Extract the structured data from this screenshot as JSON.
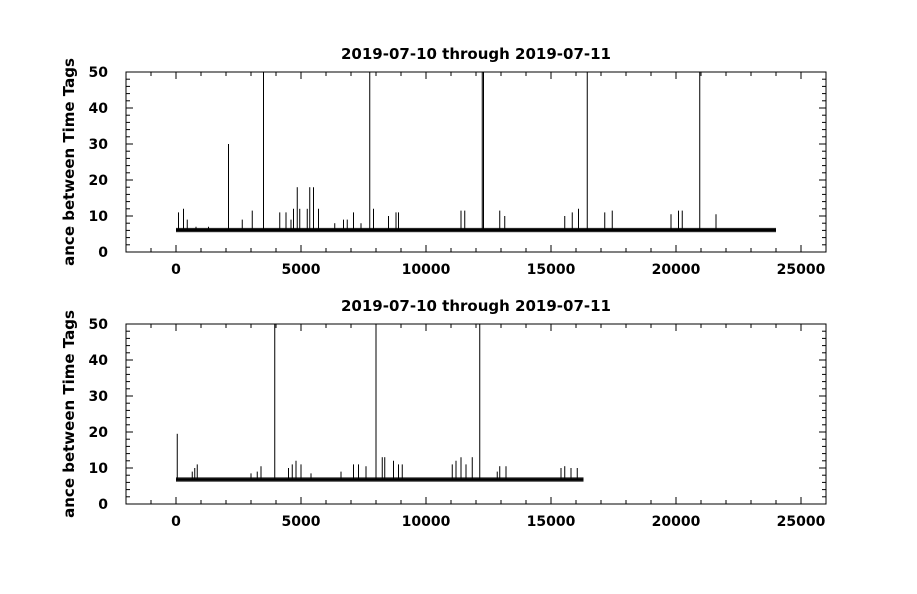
{
  "chart_data": [
    {
      "type": "line",
      "title": "2019-07-10 through 2019-07-11",
      "ylabel": "ance between Time Tags",
      "xlabel": "",
      "xlim": [
        -2000,
        26000
      ],
      "ylim": [
        0,
        50
      ],
      "x_ticks": [
        0,
        5000,
        10000,
        15000,
        20000,
        25000
      ],
      "y_ticks": [
        0,
        10,
        20,
        30,
        40,
        50
      ],
      "baseline": {
        "x_start": 0,
        "x_end": 24000,
        "y": 6.1
      },
      "series": [
        {
          "spikes": [
            [
              100,
              11
            ],
            [
              300,
              12
            ],
            [
              450,
              9
            ],
            [
              800,
              7
            ],
            [
              1300,
              7
            ],
            [
              2100,
              30
            ],
            [
              2650,
              9
            ],
            [
              3050,
              11.5
            ],
            [
              3500,
              50
            ],
            [
              4150,
              11
            ],
            [
              4400,
              11
            ],
            [
              4600,
              9
            ],
            [
              4700,
              12
            ],
            [
              4850,
              18
            ],
            [
              4950,
              12
            ],
            [
              5250,
              12
            ],
            [
              5350,
              18
            ],
            [
              5500,
              18
            ],
            [
              5700,
              12
            ],
            [
              6350,
              8
            ],
            [
              6700,
              9
            ],
            [
              6850,
              9
            ],
            [
              7100,
              11
            ],
            [
              7400,
              8
            ],
            [
              7750,
              50
            ],
            [
              7900,
              12
            ],
            [
              8500,
              10
            ],
            [
              8800,
              11
            ],
            [
              8900,
              11
            ],
            [
              11400,
              11.5
            ],
            [
              11550,
              11.5
            ],
            [
              12250,
              50
            ],
            [
              12300,
              50
            ],
            [
              12950,
              11.5
            ],
            [
              13150,
              10
            ],
            [
              15550,
              10
            ],
            [
              15850,
              11
            ],
            [
              16100,
              12
            ],
            [
              16450,
              50
            ],
            [
              17150,
              11
            ],
            [
              17450,
              11.5
            ],
            [
              19800,
              10.5
            ],
            [
              20100,
              11.5
            ],
            [
              20250,
              11.5
            ],
            [
              20950,
              50
            ],
            [
              21600,
              10.5
            ]
          ]
        }
      ]
    },
    {
      "type": "line",
      "title": "2019-07-10 through 2019-07-11",
      "ylabel": "ance between Time Tags",
      "xlabel": "",
      "xlim": [
        -2000,
        26000
      ],
      "ylim": [
        0,
        50
      ],
      "x_ticks": [
        0,
        5000,
        10000,
        15000,
        20000,
        25000
      ],
      "y_ticks": [
        0,
        10,
        20,
        30,
        40,
        50
      ],
      "baseline": {
        "x_start": 0,
        "x_end": 16300,
        "y": 6.8
      },
      "series": [
        {
          "spikes": [
            [
              50,
              19.5
            ],
            [
              650,
              9
            ],
            [
              750,
              10
            ],
            [
              850,
              11
            ],
            [
              3000,
              8.5
            ],
            [
              3250,
              9
            ],
            [
              3400,
              10.5
            ],
            [
              3950,
              50
            ],
            [
              4500,
              10
            ],
            [
              4650,
              11
            ],
            [
              4800,
              12
            ],
            [
              5000,
              11
            ],
            [
              5400,
              8.5
            ],
            [
              6600,
              9
            ],
            [
              7100,
              11
            ],
            [
              7300,
              11
            ],
            [
              7600,
              10.5
            ],
            [
              8000,
              50
            ],
            [
              8250,
              13
            ],
            [
              8350,
              13
            ],
            [
              8700,
              12
            ],
            [
              8900,
              11
            ],
            [
              9050,
              11
            ],
            [
              11050,
              11
            ],
            [
              11200,
              12
            ],
            [
              11400,
              13
            ],
            [
              11600,
              11
            ],
            [
              11850,
              13
            ],
            [
              12150,
              50
            ],
            [
              12850,
              9
            ],
            [
              12950,
              10.5
            ],
            [
              13200,
              10.5
            ],
            [
              15400,
              10
            ],
            [
              15550,
              10.5
            ],
            [
              15800,
              10
            ],
            [
              16050,
              10
            ]
          ]
        }
      ]
    }
  ]
}
